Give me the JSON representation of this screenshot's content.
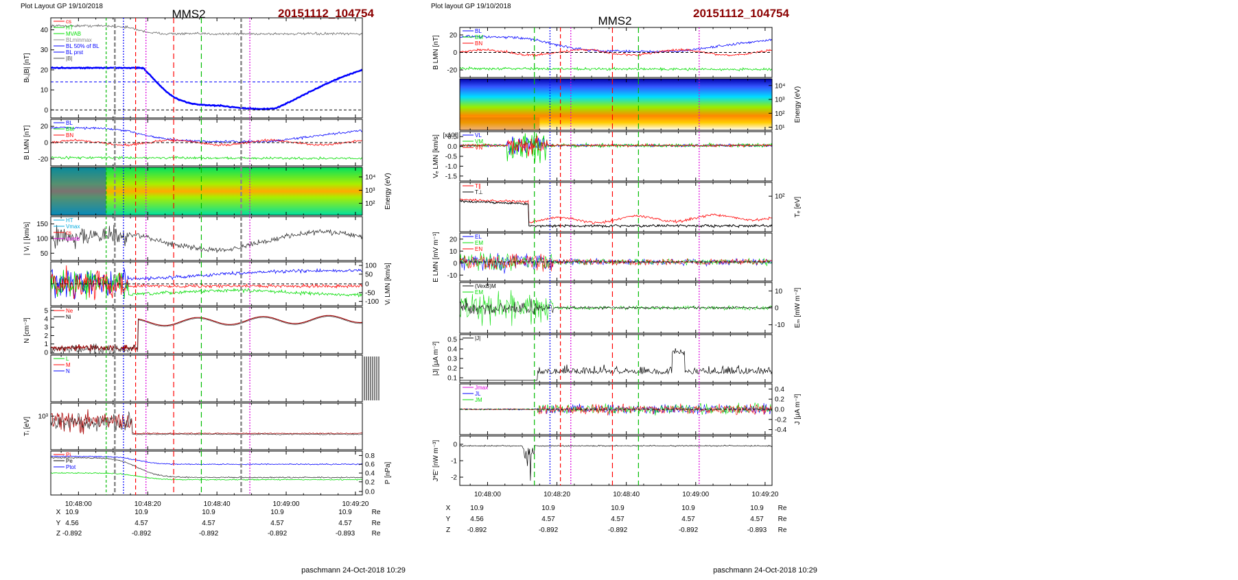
{
  "colors": {
    "title_red": "#8b0000",
    "blue": "#0000ff",
    "red": "#ff0000",
    "green": "#00dd00",
    "magenta": "#dd00dd",
    "cyan": "#00aadd",
    "gray": "#888888",
    "dark_red": "#990000"
  },
  "left": {
    "header": "Plot Layout GP 19/10/2018",
    "spacecraft": "MMS2",
    "event": "20151112_104754",
    "footer": "paschmann 24-Oct-2018 10:29",
    "time_ticks": [
      "10:48:00",
      "10:48:20",
      "10:48:40",
      "10:49:00",
      "10:49:20"
    ],
    "ephemeris": [
      {
        "label": "X",
        "values": [
          "10.9",
          "10.9",
          "10.9",
          "10.9",
          "10.9"
        ],
        "unit": "Re"
      },
      {
        "label": "Y",
        "values": [
          "4.56",
          "4.57",
          "4.57",
          "4.57",
          "4.57"
        ],
        "unit": "Re"
      },
      {
        "label": "Z",
        "values": [
          "-0.892",
          "-0.892",
          "-0.892",
          "-0.892",
          "-0.893"
        ],
        "unit": "Re"
      }
    ],
    "vlines": [
      {
        "t": 8,
        "color": "#00bb00",
        "dash": "4,3"
      },
      {
        "t": 10.5,
        "color": "#888888",
        "dash": "6,3",
        "width": 2.5
      },
      {
        "t": 13,
        "color": "#0000ff",
        "dash": "2,2"
      },
      {
        "t": 16.5,
        "color": "#ff0000",
        "dash": "6,4"
      },
      {
        "t": 19.5,
        "color": "#dd00dd",
        "dash": "2,2"
      },
      {
        "t": 27.5,
        "color": "#ff0000",
        "dash": "8,5"
      },
      {
        "t": 35.5,
        "color": "#00bb00",
        "dash": "8,5"
      },
      {
        "t": 47,
        "color": "#888888",
        "dash": "6,3",
        "width": 2.5
      },
      {
        "t": 49.5,
        "color": "#dd00dd",
        "dash": "2,2"
      }
    ],
    "panels": [
      {
        "id": "bl",
        "ylabel": "Bₗ,|B| [nT]",
        "yticks": [
          "40",
          "30",
          "20",
          "10",
          "0"
        ],
        "legend": [
          "cs",
          "HT",
          "MVAB",
          "BLminmax",
          "BL 50% of BL",
          "BL prst",
          "|B|"
        ],
        "legend_colors": [
          "#ff0000",
          "#00dd00",
          "#00dd00",
          "#888888",
          "#0000ff",
          "#0000ff",
          "#444444"
        ]
      },
      {
        "id": "blmn",
        "ylabel": "B LMN [nT]",
        "yticks": [
          "20",
          "0",
          "-20"
        ],
        "legend": [
          "BL",
          "BM",
          "BN"
        ],
        "legend_colors": [
          "#0000ff",
          "#00dd00",
          "#ff0000"
        ]
      },
      {
        "id": "ispec",
        "ylabel": "Energy (eV)",
        "yticks": [
          "10⁴",
          "10³",
          "10²"
        ]
      },
      {
        "id": "vi",
        "ylabel": "| Vᵢ | [km/s]",
        "yticks": [
          "150",
          "100",
          "50"
        ],
        "legend": [
          "HT",
          "Vmax",
          "cs",
          "dumb"
        ],
        "legend_colors": [
          "#00aadd",
          "#00aadd",
          "#ff0000",
          "#dd00dd"
        ]
      },
      {
        "id": "vilmn",
        "ylabel": "Vᵢ LMN [km/s]",
        "yticks": [
          "100",
          "50",
          "0",
          "-50",
          "-100"
        ]
      },
      {
        "id": "n",
        "ylabel": "N [cm⁻³]",
        "yticks": [
          "5",
          "4",
          "3",
          "2",
          "1",
          "0"
        ],
        "legend": [
          "Ne",
          "Ni"
        ],
        "legend_colors": [
          "#ff0000",
          "#000000"
        ]
      },
      {
        "id": "empty",
        "ylabel": "",
        "yticks": [],
        "legend": [
          "L",
          "M",
          "N"
        ],
        "legend_colors": [
          "#00dd00",
          "#ff0000",
          "#0000ff"
        ]
      },
      {
        "id": "ti",
        "ylabel": "Tᵢ [eV]",
        "yticks": [
          "10³"
        ]
      },
      {
        "id": "p",
        "ylabel": "P [nPa]",
        "yticks": [
          "0.8",
          "0.6",
          "0.4",
          "0.2",
          "0.0"
        ],
        "legend": [
          "Pi",
          "Pe",
          "Ptot"
        ],
        "legend_colors": [
          "#ff0000",
          "#000000",
          "#0000ff"
        ]
      }
    ]
  },
  "right": {
    "header": "Plot layout GP 19/10/2018",
    "spacecraft": "MMS2",
    "event": "20151112_104754",
    "footer": "paschmann 24-Oct-2018 10:29",
    "time_ticks": [
      "10:48:00",
      "10:48:20",
      "10:48:40",
      "10:49:00",
      "10:49:20"
    ],
    "ephemeris": [
      {
        "label": "X",
        "values": [
          "10.9",
          "10.9",
          "10.9",
          "10.9",
          "10.9"
        ],
        "unit": "Re"
      },
      {
        "label": "Y",
        "values": [
          "4.56",
          "4.57",
          "4.57",
          "4.57",
          "4.57"
        ],
        "unit": "Re"
      },
      {
        "label": "Z",
        "values": [
          "-0.892",
          "-0.892",
          "-0.892",
          "-0.892",
          "-0.893"
        ],
        "unit": "Re"
      }
    ],
    "vlines": [
      {
        "t": 13.5,
        "color": "#00bb00",
        "dash": "8,5"
      },
      {
        "t": 18,
        "color": "#0000ff",
        "dash": "2,2"
      },
      {
        "t": 21,
        "color": "#ff0000",
        "dash": "6,4"
      },
      {
        "t": 24,
        "color": "#dd00dd",
        "dash": "2,2"
      },
      {
        "t": 36,
        "color": "#ff0000",
        "dash": "8,5"
      },
      {
        "t": 43.5,
        "color": "#00bb00",
        "dash": "8,5"
      },
      {
        "t": 61,
        "color": "#dd00dd",
        "dash": "2,2"
      }
    ],
    "panels": [
      {
        "id": "blmn",
        "ylabel": "B LMN [nT]",
        "yticks": [
          "20",
          "0",
          "-20"
        ],
        "legend": [
          "BL",
          "BM",
          "BN"
        ],
        "legend_colors": [
          "#0000ff",
          "#00dd00",
          "#ff0000"
        ]
      },
      {
        "id": "espec",
        "ylabel": "Energy (eV)",
        "yticks": [
          "10⁴",
          "10³",
          "10²",
          "10¹"
        ]
      },
      {
        "id": "velmn",
        "ylabel": "Vₑ LMN [km/s]",
        "yticks": [
          "0.5",
          "0.0",
          "-0.5",
          "-1.0",
          "-1.5"
        ],
        "scale": "[x10³]",
        "legend": [
          "VL",
          "VM",
          "VN"
        ],
        "legend_colors": [
          "#0000ff",
          "#00dd00",
          "#ff0000"
        ]
      },
      {
        "id": "te",
        "ylabel": "Tₑ [eV]",
        "yticks": [
          "10²"
        ],
        "legend": [
          "T∥",
          "T⊥"
        ],
        "legend_colors": [
          "#ff0000",
          "#000000"
        ]
      },
      {
        "id": "elmn",
        "ylabel": "E LMN [mV m⁻¹]",
        "yticks": [
          "20",
          "10",
          "0",
          "-10"
        ],
        "legend": [
          "EL",
          "EM",
          "EN"
        ],
        "legend_colors": [
          "#0000ff",
          "#00dd00",
          "#ff0000"
        ]
      },
      {
        "id": "em",
        "ylabel": "Eₘ [mW m⁻²]",
        "yticks": [
          "10",
          "0",
          "-10"
        ],
        "legend": [
          "(VexB)M",
          "EM"
        ],
        "legend_colors": [
          "#000000",
          "#00dd00"
        ]
      },
      {
        "id": "jmag",
        "ylabel": "|J| [μA m⁻²]",
        "yticks": [
          "0.5",
          "0.4",
          "0.3",
          "0.2",
          "0.1"
        ],
        "legend": [
          "|J|"
        ],
        "legend_colors": [
          "#000000"
        ]
      },
      {
        "id": "jlmn",
        "ylabel": "J [μA m⁻²]",
        "yticks": [
          "0.4",
          "0.2",
          "0.0",
          "-0.2",
          "-0.4"
        ],
        "legend": [
          "Jmax",
          "JL",
          "JM"
        ],
        "legend_colors": [
          "#dd00dd",
          "#0000ff",
          "#00dd00"
        ]
      },
      {
        "id": "je",
        "ylabel": "J*E' [nW m⁻³]",
        "yticks": [
          "0",
          "-1",
          "-2"
        ]
      }
    ]
  }
}
